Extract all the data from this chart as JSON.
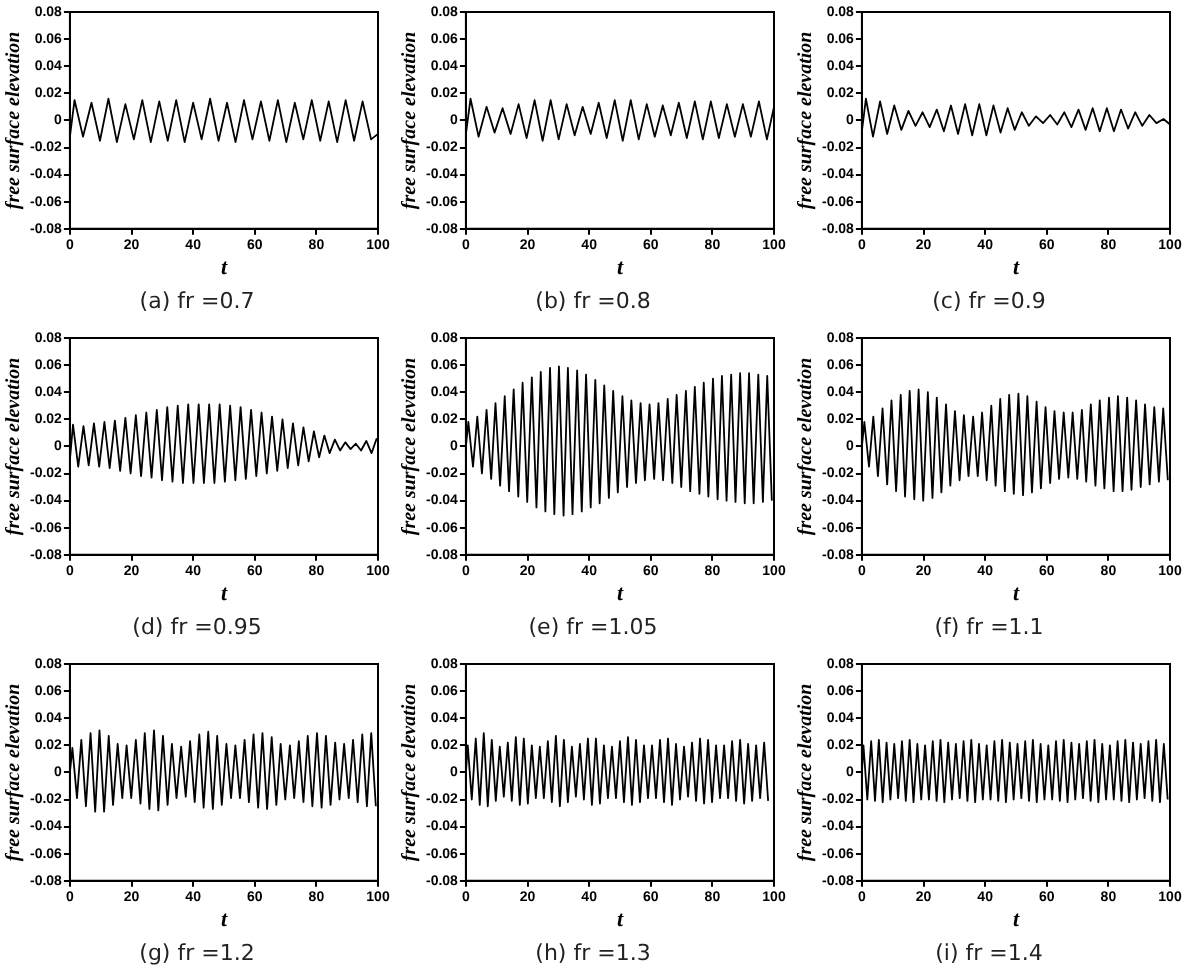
{
  "chart_data": [
    {
      "type": "line",
      "title": "(a) fr =0.7",
      "xlabel": "t",
      "ylabel": "free surface elevation",
      "xlim": [
        0,
        100
      ],
      "xticks": [
        0,
        20,
        40,
        60,
        80,
        100
      ],
      "ylim": [
        -0.08,
        0.08
      ],
      "yticks": [
        -0.08,
        -0.06,
        -0.04,
        -0.02,
        0,
        0.02,
        0.04,
        0.06,
        0.08
      ],
      "color": "#000000",
      "x": [
        0,
        1.5,
        4.25,
        7,
        9.75,
        12.5,
        15.25,
        18,
        20.75,
        23.5,
        26.25,
        29,
        31.75,
        34.5,
        37.25,
        40,
        42.75,
        45.5,
        48.25,
        51,
        53.75,
        56.5,
        59.25,
        62,
        64.75,
        67.5,
        70.25,
        73,
        75.75,
        78.5,
        81.25,
        84,
        86.75,
        89.5,
        92.25,
        95,
        97.75,
        100
      ],
      "values": [
        -0.012,
        0.015,
        -0.012,
        0.013,
        -0.015,
        0.016,
        -0.016,
        0.012,
        -0.014,
        0.015,
        -0.016,
        0.014,
        -0.015,
        0.015,
        -0.016,
        0.013,
        -0.014,
        0.016,
        -0.015,
        0.013,
        -0.016,
        0.015,
        -0.014,
        0.014,
        -0.015,
        0.015,
        -0.016,
        0.013,
        -0.014,
        0.015,
        -0.015,
        0.014,
        -0.016,
        0.015,
        -0.015,
        0.014,
        -0.014,
        -0.01
      ]
    },
    {
      "type": "line",
      "title": "(b) fr =0.8",
      "xlabel": "t",
      "ylabel": "free surface elevation",
      "xlim": [
        0,
        100
      ],
      "xticks": [
        0,
        20,
        40,
        60,
        80,
        100
      ],
      "ylim": [
        -0.08,
        0.08
      ],
      "yticks": [
        -0.08,
        -0.06,
        -0.04,
        -0.02,
        0,
        0.02,
        0.04,
        0.06,
        0.08
      ],
      "color": "#000000",
      "x": [
        0,
        1.5,
        4.1,
        6.7,
        9.3,
        11.9,
        14.5,
        17.1,
        19.7,
        22.3,
        24.9,
        27.5,
        30.1,
        32.7,
        35.3,
        37.9,
        40.5,
        43.1,
        45.7,
        48.3,
        50.9,
        53.5,
        56.1,
        58.7,
        61.3,
        63.9,
        66.5,
        69.1,
        71.7,
        74.3,
        76.9,
        79.5,
        82.1,
        84.7,
        87.3,
        89.9,
        92.5,
        95.1,
        97.7,
        100
      ],
      "values": [
        -0.01,
        0.016,
        -0.012,
        0.01,
        -0.009,
        0.009,
        -0.01,
        0.012,
        -0.013,
        0.015,
        -0.015,
        0.015,
        -0.014,
        0.012,
        -0.011,
        0.01,
        -0.01,
        0.013,
        -0.013,
        0.015,
        -0.015,
        0.015,
        -0.014,
        0.012,
        -0.012,
        0.011,
        -0.011,
        0.013,
        -0.013,
        0.014,
        -0.014,
        0.014,
        -0.013,
        0.012,
        -0.012,
        0.012,
        -0.012,
        0.014,
        -0.014,
        0.01
      ]
    },
    {
      "type": "line",
      "title": "(c) fr =0.9",
      "xlabel": "t",
      "ylabel": "free surface elevation",
      "xlim": [
        0,
        100
      ],
      "xticks": [
        0,
        20,
        40,
        60,
        80,
        100
      ],
      "ylim": [
        -0.08,
        0.08
      ],
      "yticks": [
        -0.08,
        -0.06,
        -0.04,
        -0.02,
        0,
        0.02,
        0.04,
        0.06,
        0.08
      ],
      "color": "#000000",
      "x": [
        0,
        1.3,
        3.6,
        5.9,
        8.2,
        10.5,
        12.8,
        15.1,
        17.4,
        19.7,
        22,
        24.3,
        26.6,
        28.9,
        31.2,
        33.5,
        35.8,
        38.1,
        40.4,
        42.7,
        45,
        47.3,
        49.6,
        51.9,
        54.2,
        56.5,
        58.8,
        61.1,
        63.4,
        65.7,
        68,
        70.3,
        72.6,
        74.9,
        77.2,
        79.5,
        81.8,
        84.1,
        86.4,
        88.7,
        91,
        93.3,
        95.6,
        97.9,
        100
      ],
      "values": [
        -0.008,
        0.016,
        -0.012,
        0.014,
        -0.01,
        0.011,
        -0.007,
        0.007,
        -0.004,
        0.006,
        -0.005,
        0.008,
        -0.008,
        0.011,
        -0.01,
        0.012,
        -0.011,
        0.012,
        -0.011,
        0.011,
        -0.009,
        0.009,
        -0.007,
        0.006,
        -0.004,
        0.003,
        -0.002,
        0.004,
        -0.003,
        0.006,
        -0.005,
        0.008,
        -0.007,
        0.009,
        -0.008,
        0.009,
        -0.008,
        0.008,
        -0.006,
        0.006,
        -0.004,
        0.004,
        -0.002,
        0.001,
        -0.003
      ]
    },
    {
      "type": "line",
      "title": "(d) fr =0.95",
      "xlabel": "t",
      "ylabel": "free surface elevation",
      "xlim": [
        0,
        100
      ],
      "xticks": [
        0,
        20,
        40,
        60,
        80,
        100
      ],
      "ylim": [
        -0.08,
        0.08
      ],
      "yticks": [
        -0.08,
        -0.06,
        -0.04,
        -0.02,
        0,
        0.02,
        0.04,
        0.06,
        0.08
      ],
      "color": "#000000",
      "x": [
        0,
        1,
        2.7,
        4.4,
        6.1,
        7.8,
        9.5,
        11.2,
        12.9,
        14.6,
        16.3,
        18,
        19.7,
        21.4,
        23.1,
        24.8,
        26.5,
        28.2,
        29.9,
        31.6,
        33.3,
        35,
        36.7,
        38.4,
        40.1,
        41.8,
        43.5,
        45.2,
        46.9,
        48.6,
        50.3,
        52,
        53.7,
        55.4,
        57.1,
        58.8,
        60.5,
        62.2,
        63.9,
        65.6,
        67.3,
        69,
        70.7,
        72.4,
        74.1,
        75.8,
        77.5,
        79.2,
        80.9,
        82.6,
        84.3,
        86,
        87.7,
        89.4,
        91.1,
        92.8,
        94.5,
        96.2,
        97.9,
        99.6
      ],
      "values": [
        -0.01,
        0.016,
        -0.015,
        0.015,
        -0.014,
        0.017,
        -0.015,
        0.018,
        -0.016,
        0.019,
        -0.018,
        0.021,
        -0.02,
        0.023,
        -0.022,
        0.025,
        -0.023,
        0.027,
        -0.025,
        0.029,
        -0.026,
        0.03,
        -0.027,
        0.031,
        -0.027,
        0.031,
        -0.027,
        0.031,
        -0.027,
        0.031,
        -0.026,
        0.03,
        -0.025,
        0.029,
        -0.024,
        0.027,
        -0.022,
        0.025,
        -0.02,
        0.022,
        -0.018,
        0.02,
        -0.016,
        0.017,
        -0.014,
        0.014,
        -0.011,
        0.011,
        -0.008,
        0.008,
        -0.005,
        0.005,
        -0.003,
        0.003,
        -0.002,
        0.002,
        -0.003,
        0.004,
        -0.005,
        0.006
      ]
    },
    {
      "type": "line",
      "title": "(e) fr =1.05",
      "xlabel": "t",
      "ylabel": "free surface elevation",
      "xlim": [
        0,
        100
      ],
      "xticks": [
        0,
        20,
        40,
        60,
        80,
        100
      ],
      "ylim": [
        -0.08,
        0.08
      ],
      "yticks": [
        -0.08,
        -0.06,
        -0.04,
        -0.02,
        0,
        0.02,
        0.04,
        0.06,
        0.08
      ],
      "color": "#000000",
      "x": [
        0,
        0.8,
        2.3,
        3.7,
        5.2,
        6.7,
        8.2,
        9.6,
        11.1,
        12.6,
        14,
        15.5,
        17,
        18.4,
        19.9,
        21.4,
        22.9,
        24.3,
        25.8,
        27.3,
        28.7,
        30.2,
        31.7,
        33.1,
        34.6,
        36.1,
        37.6,
        39,
        40.5,
        42,
        43.4,
        44.9,
        46.4,
        47.8,
        49.3,
        50.8,
        52.3,
        53.7,
        55.2,
        56.7,
        58.1,
        59.6,
        61.1,
        62.5,
        64,
        65.5,
        67,
        68.4,
        69.9,
        71.4,
        72.8,
        74.3,
        75.8,
        77.2,
        78.7,
        80.2,
        81.7,
        83.1,
        84.6,
        86.1,
        87.5,
        89,
        90.5,
        91.9,
        93.4,
        94.9,
        96.4,
        97.8,
        99.3
      ],
      "values": [
        0,
        0.018,
        -0.015,
        0.022,
        -0.02,
        0.027,
        -0.024,
        0.032,
        -0.029,
        0.037,
        -0.033,
        0.042,
        -0.037,
        0.047,
        -0.041,
        0.051,
        -0.045,
        0.055,
        -0.048,
        0.058,
        -0.05,
        0.059,
        -0.051,
        0.058,
        -0.05,
        0.056,
        -0.048,
        0.053,
        -0.045,
        0.049,
        -0.042,
        0.045,
        -0.038,
        0.041,
        -0.034,
        0.037,
        -0.03,
        0.034,
        -0.027,
        0.032,
        -0.025,
        0.031,
        -0.024,
        0.032,
        -0.025,
        0.035,
        -0.027,
        0.038,
        -0.03,
        0.041,
        -0.033,
        0.044,
        -0.035,
        0.047,
        -0.037,
        0.05,
        -0.039,
        0.052,
        -0.04,
        0.053,
        -0.041,
        0.054,
        -0.042,
        0.054,
        -0.042,
        0.053,
        -0.041,
        0.052,
        -0.04
      ]
    },
    {
      "type": "line",
      "title": "(f) fr =1.1",
      "xlabel": "t",
      "ylabel": "free surface elevation",
      "xlim": [
        0,
        100
      ],
      "xticks": [
        0,
        20,
        40,
        60,
        80,
        100
      ],
      "ylim": [
        -0.08,
        0.08
      ],
      "yticks": [
        -0.08,
        -0.06,
        -0.04,
        -0.02,
        0,
        0.02,
        0.04,
        0.06,
        0.08
      ],
      "color": "#000000",
      "x": [
        0,
        0.8,
        2.3,
        3.7,
        5.2,
        6.7,
        8.2,
        9.6,
        11.1,
        12.6,
        14,
        15.5,
        17,
        18.4,
        19.9,
        21.4,
        22.9,
        24.3,
        25.8,
        27.3,
        28.7,
        30.2,
        31.7,
        33.1,
        34.6,
        36.1,
        37.6,
        39,
        40.5,
        42,
        43.4,
        44.9,
        46.4,
        47.8,
        49.3,
        50.8,
        52.3,
        53.7,
        55.2,
        56.7,
        58.1,
        59.6,
        61.1,
        62.5,
        64,
        65.5,
        67,
        68.4,
        69.9,
        71.4,
        72.8,
        74.3,
        75.8,
        77.2,
        78.7,
        80.2,
        81.7,
        83.1,
        84.6,
        86.1,
        87.5,
        89,
        90.5,
        91.9,
        93.4,
        94.9,
        96.4,
        97.8,
        99.3
      ],
      "values": [
        0,
        0.018,
        -0.015,
        0.022,
        -0.022,
        0.028,
        -0.028,
        0.034,
        -0.033,
        0.038,
        -0.037,
        0.041,
        -0.039,
        0.042,
        -0.04,
        0.04,
        -0.038,
        0.036,
        -0.034,
        0.031,
        -0.029,
        0.026,
        -0.025,
        0.023,
        -0.022,
        0.022,
        -0.022,
        0.025,
        -0.025,
        0.03,
        -0.029,
        0.035,
        -0.033,
        0.038,
        -0.035,
        0.039,
        -0.036,
        0.037,
        -0.034,
        0.033,
        -0.031,
        0.029,
        -0.027,
        0.026,
        -0.024,
        0.025,
        -0.023,
        0.025,
        -0.024,
        0.027,
        -0.026,
        0.031,
        -0.029,
        0.034,
        -0.031,
        0.036,
        -0.033,
        0.037,
        -0.033,
        0.036,
        -0.032,
        0.034,
        -0.03,
        0.031,
        -0.028,
        0.029,
        -0.026,
        0.028,
        -0.025
      ]
    },
    {
      "type": "line",
      "title": "(g) fr =1.2",
      "xlabel": "t",
      "ylabel": "free surface elevation",
      "xlim": [
        0,
        100
      ],
      "xticks": [
        0,
        20,
        40,
        60,
        80,
        100
      ],
      "ylim": [
        -0.08,
        0.08
      ],
      "yticks": [
        -0.08,
        -0.06,
        -0.04,
        -0.02,
        0,
        0.02,
        0.04,
        0.06,
        0.08
      ],
      "color": "#000000",
      "x": [
        0,
        0.8,
        2.3,
        3.7,
        5.2,
        6.7,
        8.2,
        9.6,
        11.1,
        12.6,
        14,
        15.5,
        17,
        18.4,
        19.9,
        21.4,
        22.9,
        24.3,
        25.8,
        27.3,
        28.7,
        30.2,
        31.7,
        33.1,
        34.6,
        36.1,
        37.6,
        39,
        40.5,
        42,
        43.4,
        44.9,
        46.4,
        47.8,
        49.3,
        50.8,
        52.3,
        53.7,
        55.2,
        56.7,
        58.1,
        59.6,
        61.1,
        62.5,
        64,
        65.5,
        67,
        68.4,
        69.9,
        71.4,
        72.8,
        74.3,
        75.8,
        77.2,
        78.7,
        80.2,
        81.7,
        83.1,
        84.6,
        86.1,
        87.5,
        89,
        90.5,
        91.9,
        93.4,
        94.9,
        96.4,
        97.8,
        99.3
      ],
      "values": [
        0,
        0.018,
        -0.019,
        0.024,
        -0.025,
        0.029,
        -0.029,
        0.031,
        -0.029,
        0.027,
        -0.024,
        0.021,
        -0.019,
        0.02,
        -0.019,
        0.024,
        -0.023,
        0.029,
        -0.027,
        0.031,
        -0.028,
        0.027,
        -0.024,
        0.021,
        -0.019,
        0.019,
        -0.018,
        0.023,
        -0.022,
        0.028,
        -0.026,
        0.03,
        -0.027,
        0.027,
        -0.024,
        0.021,
        -0.019,
        0.02,
        -0.019,
        0.024,
        -0.022,
        0.028,
        -0.026,
        0.029,
        -0.027,
        0.026,
        -0.024,
        0.021,
        -0.02,
        0.02,
        -0.019,
        0.023,
        -0.022,
        0.027,
        -0.025,
        0.029,
        -0.026,
        0.027,
        -0.024,
        0.022,
        -0.02,
        0.021,
        -0.019,
        0.024,
        -0.022,
        0.028,
        -0.025,
        0.029,
        -0.025
      ]
    },
    {
      "type": "line",
      "title": "(h) fr =1.3",
      "xlabel": "t",
      "ylabel": "free surface elevation",
      "xlim": [
        0,
        100
      ],
      "xticks": [
        0,
        20,
        40,
        60,
        80,
        100
      ],
      "ylim": [
        -0.08,
        0.08
      ],
      "yticks": [
        -0.08,
        -0.06,
        -0.04,
        -0.02,
        0,
        0.02,
        0.04,
        0.06,
        0.08
      ],
      "color": "#000000",
      "x": [
        0,
        0.6,
        1.9,
        3.2,
        4.5,
        5.8,
        7.1,
        8.4,
        9.7,
        11,
        12.3,
        13.6,
        14.9,
        16.2,
        17.5,
        18.8,
        20.1,
        21.4,
        22.7,
        24,
        25.3,
        26.6,
        27.9,
        29.2,
        30.5,
        31.8,
        33.1,
        34.4,
        35.7,
        37,
        38.3,
        39.6,
        40.9,
        42.2,
        43.5,
        44.8,
        46.1,
        47.4,
        48.7,
        50,
        51.3,
        52.6,
        53.9,
        55.2,
        56.5,
        57.8,
        59.1,
        60.4,
        61.7,
        63,
        64.3,
        65.6,
        66.9,
        68.2,
        69.5,
        70.8,
        72.1,
        73.4,
        74.7,
        76,
        77.3,
        78.6,
        79.9,
        81.2,
        82.5,
        83.8,
        85.1,
        86.4,
        87.7,
        89,
        90.3,
        91.6,
        92.9,
        94.2,
        95.5,
        96.8,
        98.1
      ],
      "values": [
        0,
        0.02,
        -0.02,
        0.025,
        -0.024,
        0.029,
        -0.025,
        0.024,
        -0.021,
        0.019,
        -0.018,
        0.022,
        -0.021,
        0.026,
        -0.024,
        0.025,
        -0.023,
        0.02,
        -0.019,
        0.019,
        -0.019,
        0.023,
        -0.022,
        0.027,
        -0.025,
        0.024,
        -0.022,
        0.019,
        -0.018,
        0.021,
        -0.02,
        0.025,
        -0.024,
        0.025,
        -0.023,
        0.02,
        -0.019,
        0.019,
        -0.019,
        0.023,
        -0.022,
        0.026,
        -0.024,
        0.024,
        -0.022,
        0.02,
        -0.019,
        0.02,
        -0.019,
        0.024,
        -0.022,
        0.025,
        -0.024,
        0.021,
        -0.02,
        0.019,
        -0.018,
        0.022,
        -0.021,
        0.025,
        -0.023,
        0.024,
        -0.022,
        0.02,
        -0.019,
        0.02,
        -0.019,
        0.023,
        -0.021,
        0.024,
        -0.023,
        0.021,
        -0.021,
        0.02,
        -0.019,
        0.022,
        -0.021
      ]
    },
    {
      "type": "line",
      "title": "(i) fr =1.4",
      "xlabel": "t",
      "ylabel": "free surface elevation",
      "xlim": [
        0,
        100
      ],
      "xticks": [
        0,
        20,
        40,
        60,
        80,
        100
      ],
      "ylim": [
        -0.08,
        0.08
      ],
      "yticks": [
        -0.08,
        -0.06,
        -0.04,
        -0.02,
        0,
        0.02,
        0.04,
        0.06,
        0.08
      ],
      "color": "#000000",
      "x": [
        0,
        0.5,
        1.75,
        3,
        4.25,
        5.5,
        6.75,
        8,
        9.25,
        10.5,
        11.75,
        13,
        14.25,
        15.5,
        16.75,
        18,
        19.25,
        20.5,
        21.75,
        23,
        24.25,
        25.5,
        26.75,
        28,
        29.25,
        30.5,
        31.75,
        33,
        34.25,
        35.5,
        36.75,
        38,
        39.25,
        40.5,
        41.75,
        43,
        44.25,
        45.5,
        46.75,
        48,
        49.25,
        50.5,
        51.75,
        53,
        54.25,
        55.5,
        56.75,
        58,
        59.25,
        60.5,
        61.75,
        63,
        64.25,
        65.5,
        66.75,
        68,
        69.25,
        70.5,
        71.75,
        73,
        74.25,
        75.5,
        76.75,
        78,
        79.25,
        80.5,
        81.75,
        83,
        84.25,
        85.5,
        86.75,
        88,
        89.25,
        90.5,
        91.75,
        93,
        94.25,
        95.5,
        96.75,
        98,
        99.25
      ],
      "values": [
        0,
        0.02,
        -0.02,
        0.023,
        -0.021,
        0.024,
        -0.022,
        0.022,
        -0.02,
        0.021,
        -0.019,
        0.023,
        -0.021,
        0.024,
        -0.022,
        0.021,
        -0.02,
        0.02,
        -0.02,
        0.023,
        -0.021,
        0.024,
        -0.022,
        0.022,
        -0.02,
        0.021,
        -0.019,
        0.023,
        -0.021,
        0.024,
        -0.022,
        0.021,
        -0.02,
        0.02,
        -0.02,
        0.023,
        -0.021,
        0.024,
        -0.022,
        0.022,
        -0.02,
        0.021,
        -0.019,
        0.023,
        -0.021,
        0.024,
        -0.022,
        0.021,
        -0.02,
        0.02,
        -0.02,
        0.023,
        -0.021,
        0.024,
        -0.022,
        0.022,
        -0.02,
        0.021,
        -0.019,
        0.023,
        -0.021,
        0.024,
        -0.022,
        0.021,
        -0.02,
        0.02,
        -0.02,
        0.023,
        -0.021,
        0.024,
        -0.022,
        0.022,
        -0.02,
        0.021,
        -0.019,
        0.023,
        -0.021,
        0.024,
        -0.022,
        0.021,
        -0.02
      ]
    }
  ]
}
